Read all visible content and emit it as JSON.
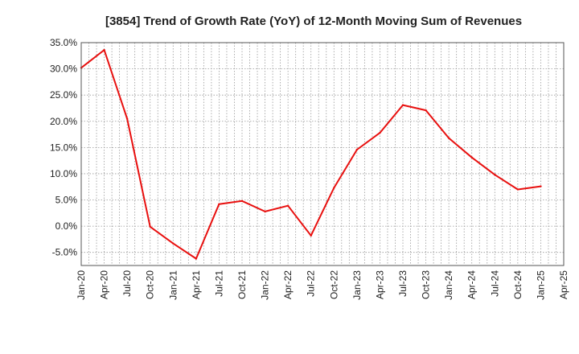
{
  "chart_data": {
    "type": "line",
    "title": "[3854]  Trend of Growth Rate (YoY) of 12-Month Moving Sum of Revenues",
    "xlabel": "",
    "ylabel": "",
    "ylim": [
      -7.5,
      35.0
    ],
    "y_ticks": [
      "35.0%",
      "30.0%",
      "25.0%",
      "20.0%",
      "15.0%",
      "10.0%",
      "5.0%",
      "0.0%",
      "-5.0%"
    ],
    "y_tick_values": [
      35,
      30,
      25,
      20,
      15,
      10,
      5,
      0,
      -5
    ],
    "x_ticks": [
      "Jan-20",
      "Apr-20",
      "Jul-20",
      "Oct-20",
      "Jan-21",
      "Apr-21",
      "Jul-21",
      "Oct-21",
      "Jan-22",
      "Apr-22",
      "Jul-22",
      "Oct-22",
      "Jan-23",
      "Apr-23",
      "Jul-23",
      "Oct-23",
      "Jan-24",
      "Apr-24",
      "Jul-24",
      "Oct-24",
      "Jan-25",
      "Apr-25"
    ],
    "grid": true,
    "series": [
      {
        "color": "#e8100f",
        "x": [
          "Jan-20",
          "Apr-20",
          "Jul-20",
          "Oct-20",
          "Jan-21",
          "Apr-21",
          "Jul-21",
          "Oct-21",
          "Jan-22",
          "Apr-22",
          "Jul-22",
          "Oct-22",
          "Jan-23",
          "Apr-23",
          "Jul-23",
          "Oct-23",
          "Jan-24",
          "Apr-24",
          "Jul-24",
          "Oct-24",
          "Jan-25"
        ],
        "values": [
          30.2,
          33.6,
          20.5,
          -0.1,
          -3.3,
          -6.2,
          4.2,
          4.8,
          2.8,
          3.9,
          -1.8,
          7.3,
          14.6,
          17.8,
          23.1,
          22.1,
          16.8,
          13.1,
          9.8,
          7.0,
          7.6
        ]
      }
    ]
  }
}
